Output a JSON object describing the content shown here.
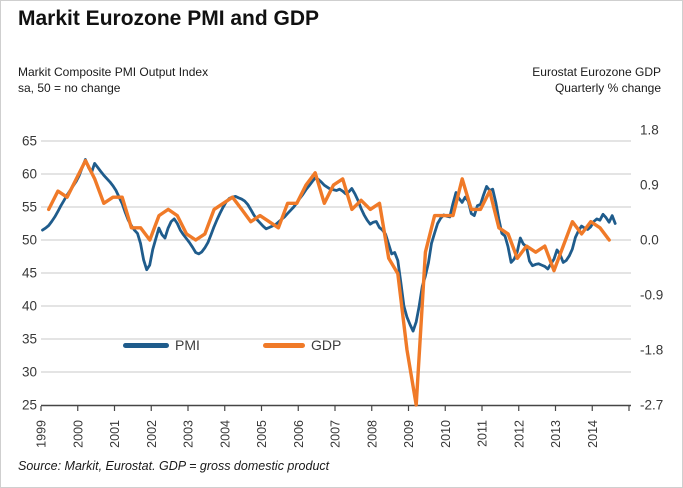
{
  "title": "Markit Eurozone PMI and GDP",
  "subtitle_left": {
    "line1": "Markit Composite PMI Output Index",
    "line2": "sa, 50 = no change"
  },
  "subtitle_right": {
    "line1": "Eurostat Eurozone GDP",
    "line2": "Quarterly % change"
  },
  "source": "Source: Markit, Eurostat. GDP = gross domestic product",
  "legend": [
    {
      "label": "PMI",
      "color": "#1f5c8c"
    },
    {
      "label": "GDP",
      "color": "#f07a28"
    }
  ],
  "colors": {
    "pmi_line": "#1f5c8c",
    "gdp_line": "#f07a28",
    "gridline": "#c8c8c8",
    "axis": "#454545",
    "tick_text": "#383838",
    "text": "#1a1a1a"
  },
  "chart_data": {
    "type": "line",
    "title": "Markit Eurozone PMI and GDP",
    "grid": true,
    "legend_position": "inside-bottom",
    "x_axis": {
      "tick_labels": [
        "1999",
        "2000",
        "2001",
        "2002",
        "2003",
        "2004",
        "2005",
        "2006",
        "2007",
        "2008",
        "2009",
        "2010",
        "2011",
        "2012",
        "2013",
        "2014"
      ],
      "range": [
        1999,
        2015
      ],
      "label_rotation_deg": -90
    },
    "left_axis": {
      "label": "Markit Composite PMI Output Index, sa, 50 = no change",
      "ticks": [
        65,
        60,
        55,
        50,
        45,
        40,
        35,
        30,
        25
      ],
      "range": [
        25,
        65
      ]
    },
    "right_axis": {
      "label": "Eurostat Eurozone GDP, Quarterly % change",
      "ticks": [
        1.8,
        0.9,
        0.0,
        -0.9,
        -1.8,
        -2.7
      ],
      "alignment_note": "GDP 0.0 aligns with PMI 50; GDP -2.7 aligns with PMI 25"
    },
    "series": [
      {
        "name": "PMI",
        "axis": "left",
        "color": "#1f5c8c",
        "frequency": "monthly",
        "start": "1999-01",
        "end": "2014-08",
        "values": [
          51.5,
          51.8,
          52.2,
          52.8,
          53.5,
          54.3,
          55.2,
          56.0,
          56.8,
          57.5,
          58.2,
          58.9,
          59.8,
          61.0,
          62.2,
          61.0,
          60.2,
          61.6,
          61.0,
          60.4,
          59.8,
          59.3,
          58.8,
          58.2,
          57.5,
          56.5,
          55.5,
          54.2,
          53.0,
          52.2,
          51.5,
          51.0,
          49.5,
          47.0,
          45.5,
          46.2,
          48.6,
          50.2,
          51.8,
          50.8,
          50.3,
          51.8,
          52.8,
          53.2,
          52.5,
          51.5,
          50.8,
          50.2,
          49.6,
          48.9,
          48.1,
          47.9,
          48.2,
          48.8,
          49.6,
          50.8,
          52.0,
          53.1,
          54.1,
          55.0,
          55.8,
          56.3,
          56.5,
          56.6,
          56.4,
          56.2,
          55.9,
          55.4,
          54.6,
          53.8,
          53.1,
          52.6,
          52.1,
          51.7,
          51.9,
          52.1,
          52.3,
          52.7,
          53.1,
          53.5,
          54.0,
          54.5,
          55.0,
          55.6,
          56.3,
          56.9,
          57.6,
          58.2,
          58.8,
          59.4,
          59.2,
          58.8,
          58.3,
          58.0,
          57.7,
          57.6,
          57.5,
          57.7,
          57.4,
          57.0,
          57.3,
          57.8,
          57.0,
          56.0,
          54.8,
          53.8,
          53.0,
          52.4,
          52.7,
          52.8,
          51.9,
          51.5,
          50.9,
          49.4,
          47.9,
          48.1,
          46.9,
          43.6,
          40.0,
          38.3,
          37.2,
          36.2,
          37.6,
          40.0,
          43.0,
          44.5,
          46.5,
          49.5,
          51.0,
          52.5,
          53.3,
          53.8,
          53.6,
          53.5,
          55.5,
          57.2,
          56.3,
          55.7,
          56.5,
          55.9,
          54.0,
          53.7,
          55.2,
          55.4,
          56.8,
          58.1,
          57.5,
          57.7,
          55.7,
          53.2,
          51.0,
          50.6,
          49.0,
          46.6,
          47.1,
          48.2,
          50.3,
          49.4,
          49.0,
          46.8,
          46.1,
          46.3,
          46.4,
          46.2,
          46.0,
          45.6,
          46.4,
          47.1,
          48.5,
          47.8,
          46.6,
          46.9,
          47.6,
          48.6,
          50.4,
          51.4,
          52.1,
          51.8,
          51.6,
          52.0,
          52.8,
          53.2,
          53.0,
          53.9,
          53.4,
          52.7,
          53.7,
          52.5
        ]
      },
      {
        "name": "GDP",
        "axis": "right",
        "color": "#f07a28",
        "frequency": "quarterly",
        "start": "1999-Q1",
        "end": "2014-Q2",
        "values": [
          0.5,
          0.8,
          0.7,
          1.0,
          1.3,
          1.0,
          0.6,
          0.7,
          0.7,
          0.2,
          0.2,
          0.0,
          0.4,
          0.5,
          0.4,
          0.1,
          0.0,
          0.1,
          0.5,
          0.6,
          0.7,
          0.5,
          0.3,
          0.4,
          0.3,
          0.2,
          0.6,
          0.6,
          0.9,
          1.1,
          0.6,
          0.9,
          1.0,
          0.5,
          0.65,
          0.5,
          0.6,
          -0.3,
          -0.55,
          -1.8,
          -2.7,
          -0.2,
          0.4,
          0.4,
          0.4,
          1.0,
          0.5,
          0.5,
          0.8,
          0.2,
          0.1,
          -0.3,
          -0.1,
          -0.2,
          -0.1,
          -0.5,
          -0.1,
          0.3,
          0.1,
          0.3,
          0.2,
          0.0
        ]
      }
    ]
  }
}
